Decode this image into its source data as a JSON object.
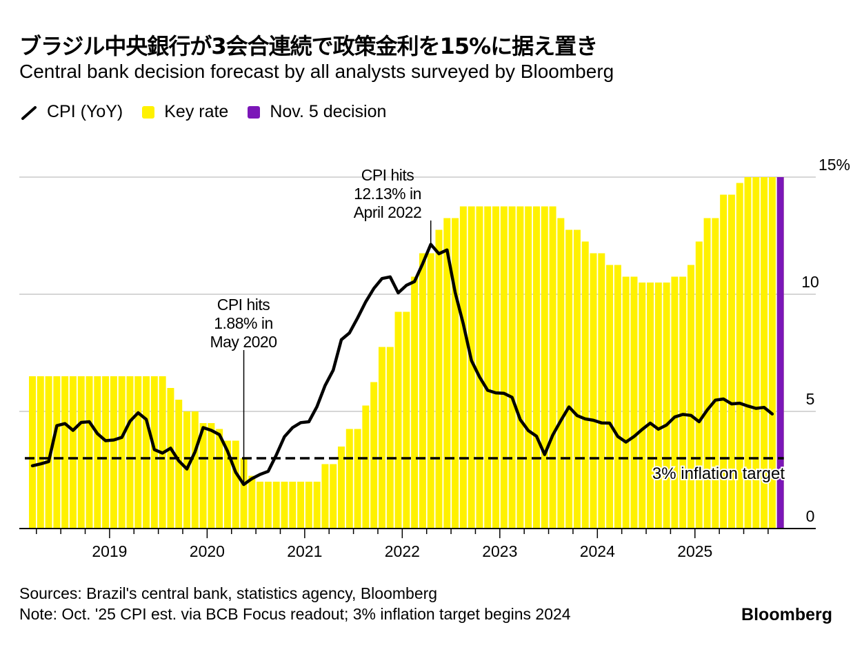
{
  "header": {
    "title": "ブラジル中央銀行が3会合連続で政策金利を15%に据え置き",
    "subtitle": "Central bank decision forecast by all analysts surveyed by Bloomberg"
  },
  "legend": [
    {
      "label": "CPI (YoY)",
      "icon": "line-icon",
      "color": "#000000"
    },
    {
      "label": "Key rate",
      "icon": "square-swatch",
      "color": "#FFF100"
    },
    {
      "label": "Nov. 5 decision",
      "icon": "square-swatch",
      "color": "#7B16B8"
    }
  ],
  "footer": {
    "sources": "Sources: Brazil's central bank, statistics agency, Bloomberg",
    "note": "Note: Oct. '25 CPI est. via BCB Focus readout; 3% inflation target begins 2024",
    "brand": "Bloomberg"
  },
  "chart_data": {
    "type": "bar",
    "title": "ブラジル中央銀行が3会合連続で政策金利を15%に据え置き",
    "subtitle": "Central bank decision forecast by all analysts surveyed by Bloomberg",
    "xlabel": "",
    "ylabel": "",
    "ylim": [
      0,
      15
    ],
    "yticks": [
      {
        "value": 0,
        "label": "0"
      },
      {
        "value": 5,
        "label": "5"
      },
      {
        "value": 10,
        "label": "10"
      },
      {
        "value": 15,
        "label": "15%"
      }
    ],
    "xticks": [
      "2019",
      "2020",
      "2021",
      "2022",
      "2023",
      "2024",
      "2025"
    ],
    "start_month": "2018-03",
    "end_month": "2025-11",
    "grid": true,
    "legend_position": "top-left",
    "series": [
      {
        "name": "Key rate",
        "type": "bar",
        "color": "#FFF100",
        "values": [
          6.5,
          6.5,
          6.5,
          6.5,
          6.5,
          6.5,
          6.5,
          6.5,
          6.5,
          6.5,
          6.5,
          6.5,
          6.5,
          6.5,
          6.5,
          6.5,
          6.5,
          6.0,
          5.5,
          5.0,
          5.0,
          4.5,
          4.5,
          4.25,
          3.75,
          3.75,
          3.0,
          2.25,
          2.0,
          2.0,
          2.0,
          2.0,
          2.0,
          2.0,
          2.0,
          2.0,
          2.75,
          2.75,
          3.5,
          4.25,
          4.25,
          5.25,
          6.25,
          7.75,
          7.75,
          9.25,
          9.25,
          10.75,
          11.75,
          11.75,
          12.75,
          13.25,
          13.25,
          13.75,
          13.75,
          13.75,
          13.75,
          13.75,
          13.75,
          13.75,
          13.75,
          13.75,
          13.75,
          13.75,
          13.75,
          13.25,
          12.75,
          12.75,
          12.25,
          11.75,
          11.75,
          11.25,
          11.25,
          10.75,
          10.75,
          10.5,
          10.5,
          10.5,
          10.5,
          10.75,
          10.75,
          11.25,
          12.25,
          13.25,
          13.25,
          14.25,
          14.25,
          14.75,
          15.0,
          15.0,
          15.0,
          15.0,
          15.0
        ]
      },
      {
        "name": "Nov. 5 decision",
        "type": "bar",
        "color": "#7B16B8",
        "month": "2025-11",
        "value": 15.0
      },
      {
        "name": "CPI (YoY)",
        "type": "line",
        "color": "#000000",
        "values": [
          2.68,
          2.76,
          2.86,
          4.39,
          4.48,
          4.19,
          4.53,
          4.56,
          4.05,
          3.75,
          3.78,
          3.89,
          4.58,
          4.94,
          4.66,
          3.37,
          3.22,
          3.43,
          2.89,
          2.54,
          3.27,
          4.31,
          4.19,
          4.01,
          3.3,
          2.4,
          1.88,
          2.13,
          2.31,
          2.44,
          3.14,
          3.92,
          4.31,
          4.52,
          4.56,
          5.2,
          6.1,
          6.76,
          8.06,
          8.35,
          8.99,
          9.68,
          10.25,
          10.67,
          10.74,
          10.06,
          10.38,
          10.54,
          11.3,
          12.13,
          11.73,
          11.89,
          10.07,
          8.73,
          7.17,
          6.47,
          5.9,
          5.79,
          5.77,
          5.6,
          4.65,
          4.18,
          3.94,
          3.16,
          3.99,
          4.61,
          5.19,
          4.82,
          4.68,
          4.62,
          4.51,
          4.5,
          3.93,
          3.69,
          3.93,
          4.23,
          4.5,
          4.24,
          4.42,
          4.76,
          4.87,
          4.83,
          4.56,
          5.06,
          5.48,
          5.53,
          5.32,
          5.35,
          5.23,
          5.13,
          5.17,
          4.89
        ]
      },
      {
        "name": "3% inflation target",
        "type": "hline",
        "value": 3.0,
        "style": "dashed"
      }
    ],
    "annotations": [
      {
        "text_lines": [
          "CPI hits",
          "1.88% in",
          "May 2020"
        ],
        "month": "2020-05",
        "value": 1.88
      },
      {
        "text_lines": [
          "CPI hits",
          "12.13% in",
          "April 2022"
        ],
        "month": "2022-04",
        "value": 12.13
      },
      {
        "text": "3% inflation target",
        "value": 3.0
      }
    ]
  }
}
